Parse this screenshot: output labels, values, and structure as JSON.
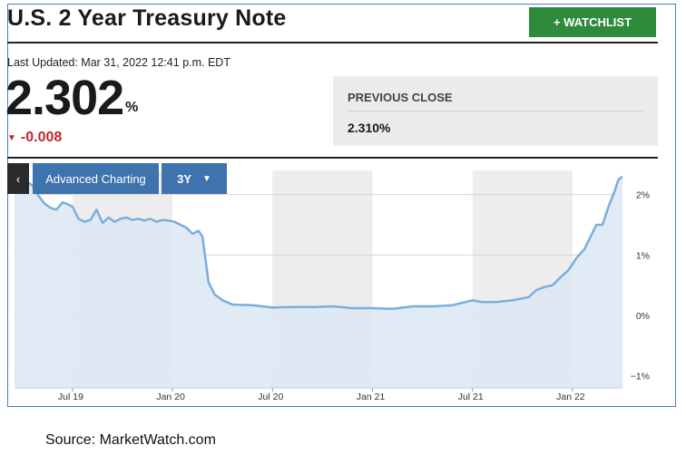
{
  "header": {
    "title": "U.S. 2 Year Treasury Note",
    "watchlist_label": "+ WATCHLIST"
  },
  "quote": {
    "last_updated": "Last Updated: Mar 31, 2022 12:41 p.m. EDT",
    "price": "2.302",
    "price_unit": "%",
    "change": "-0.008",
    "change_direction_icon": "triangle-down-icon",
    "previous_close_label": "PREVIOUS CLOSE",
    "previous_close_value": "2.310%"
  },
  "chart_controls": {
    "back_icon": "chevron-left-icon",
    "advanced_label": "Advanced Charting",
    "range_label": "3Y",
    "range_caret_icon": "caret-down-icon"
  },
  "colors": {
    "accent_green": "#2e8b3c",
    "control_blue": "#3f73ad",
    "down_red": "#c0262d",
    "line_blue": "#7aaedc",
    "area_fill": "#dbe8f3"
  },
  "chart_data": {
    "type": "area",
    "title": "",
    "xlabel": "",
    "ylabel": "",
    "x_tick_labels": [
      "Jul 19",
      "Jan 20",
      "Jul 20",
      "Jan 21",
      "Jul 21",
      "Jan 22"
    ],
    "y_tick_labels": [
      "2%",
      "1%",
      "0%",
      "−1%"
    ],
    "y_ticks": [
      2,
      1,
      0,
      -1
    ],
    "ylim": [
      -1.2,
      2.4
    ],
    "xlim": [
      2019.21,
      2022.25
    ],
    "grid": true,
    "x": [
      2019.21,
      2019.24,
      2019.27,
      2019.3,
      2019.33,
      2019.36,
      2019.39,
      2019.42,
      2019.45,
      2019.47,
      2019.5,
      2019.53,
      2019.56,
      2019.59,
      2019.62,
      2019.65,
      2019.68,
      2019.71,
      2019.74,
      2019.77,
      2019.8,
      2019.83,
      2019.86,
      2019.89,
      2019.92,
      2019.95,
      2019.98,
      2020.01,
      2020.04,
      2020.07,
      2020.1,
      2020.13,
      2020.15,
      2020.18,
      2020.21,
      2020.25,
      2020.3,
      2020.4,
      2020.5,
      2020.6,
      2020.7,
      2020.8,
      2020.9,
      2021.0,
      2021.1,
      2021.2,
      2021.3,
      2021.4,
      2021.5,
      2021.55,
      2021.62,
      2021.7,
      2021.78,
      2021.82,
      2021.86,
      2021.9,
      2021.94,
      2021.98,
      2022.02,
      2022.06,
      2022.09,
      2022.12,
      2022.15,
      2022.18,
      2022.21,
      2022.23,
      2022.25
    ],
    "values": [
      2.3,
      2.26,
      2.22,
      2.15,
      1.98,
      1.85,
      1.78,
      1.75,
      1.87,
      1.85,
      1.8,
      1.6,
      1.55,
      1.58,
      1.75,
      1.53,
      1.62,
      1.55,
      1.6,
      1.62,
      1.58,
      1.6,
      1.57,
      1.6,
      1.55,
      1.58,
      1.57,
      1.55,
      1.5,
      1.45,
      1.35,
      1.4,
      1.3,
      0.55,
      0.35,
      0.25,
      0.18,
      0.17,
      0.13,
      0.14,
      0.14,
      0.15,
      0.12,
      0.12,
      0.11,
      0.15,
      0.15,
      0.17,
      0.25,
      0.22,
      0.22,
      0.25,
      0.3,
      0.42,
      0.47,
      0.5,
      0.63,
      0.75,
      0.95,
      1.1,
      1.3,
      1.5,
      1.5,
      1.8,
      2.05,
      2.25,
      2.3
    ]
  },
  "footer": {
    "source": "Source:  MarketWatch.com"
  }
}
